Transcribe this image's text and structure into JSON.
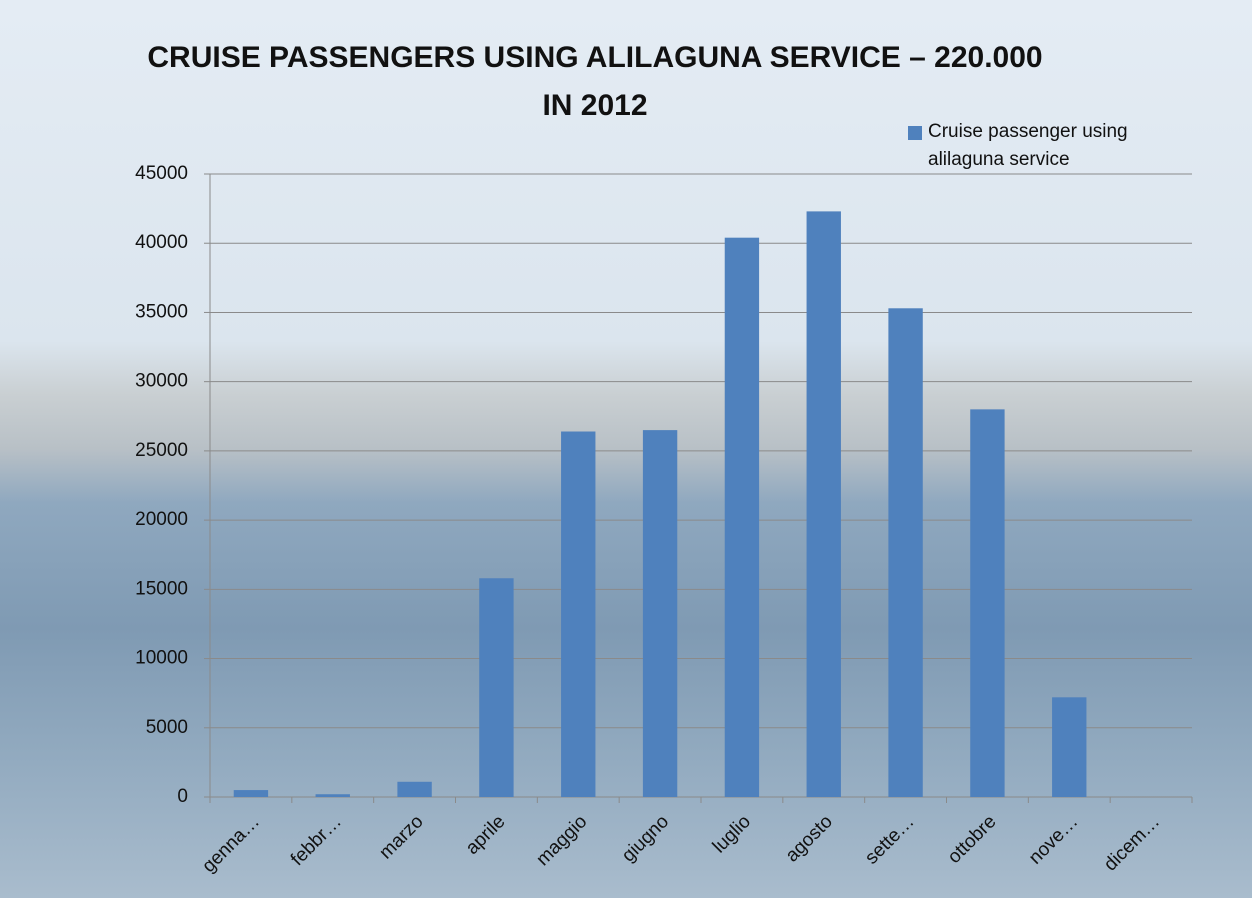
{
  "chart_data": {
    "type": "bar",
    "title": "CRUISE PASSENGERS USING ALILAGUNA SERVICE – 220.000 IN 2012",
    "categories": [
      "genna…",
      "febbr…",
      "marzo",
      "aprile",
      "maggio",
      "giugno",
      "luglio",
      "agosto",
      "sette…",
      "ottobre",
      "nove…",
      "dicem…"
    ],
    "series": [
      {
        "name": "Cruise passenger using alilaguna service",
        "color": "#4f81bd",
        "values": [
          500,
          200,
          1100,
          15800,
          26400,
          26500,
          40400,
          42300,
          35300,
          28000,
          7200,
          0
        ]
      }
    ],
    "ylim": [
      0,
      45000
    ],
    "yticks": [
      0,
      5000,
      10000,
      15000,
      20000,
      25000,
      30000,
      35000,
      40000,
      45000
    ],
    "grid": true,
    "legend": "top-right"
  }
}
